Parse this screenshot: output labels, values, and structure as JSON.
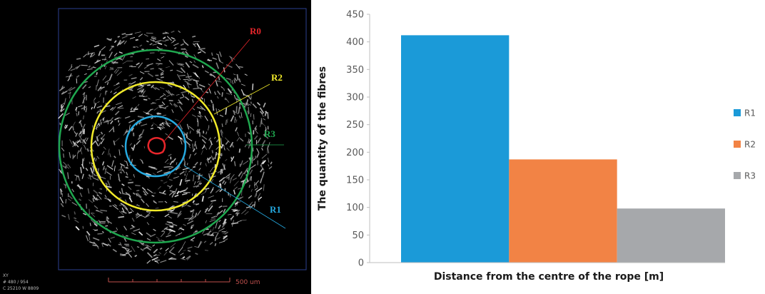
{
  "micrograph": {
    "labels": {
      "r0": "R0",
      "r1": "R1",
      "r2": "R2",
      "r3": "R3"
    },
    "label_colors": {
      "r0": "#e8262b",
      "r1": "#25a9e0",
      "r2": "#f1ea2a",
      "r3": "#1fa84f"
    },
    "scale_bar": "500 um",
    "info": [
      "XY",
      "# 480 / 954",
      "C 25210 W 8809"
    ]
  },
  "chart_data": {
    "type": "bar",
    "categories": [
      "R1",
      "R2",
      "R3"
    ],
    "values": [
      412,
      187,
      98
    ],
    "colors": [
      "#1b9ad8",
      "#f28345",
      "#a6a8ab"
    ],
    "title": "",
    "xlabel": "Distance from the centre of the rope [m]",
    "ylabel": "The quantity of the fibres",
    "ylim": [
      0,
      450
    ],
    "yticks": [
      0,
      50,
      100,
      150,
      200,
      250,
      300,
      350,
      400,
      450
    ],
    "grid": false,
    "legend": {
      "position": "right",
      "entries": [
        "R1",
        "R2",
        "R3"
      ]
    }
  }
}
